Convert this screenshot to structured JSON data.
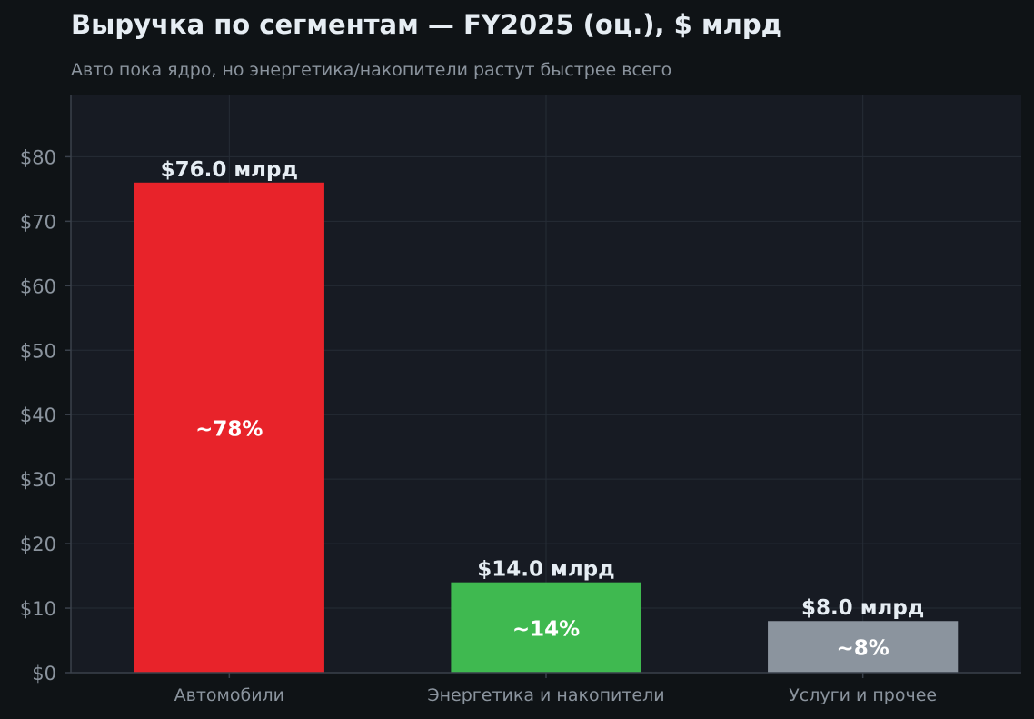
{
  "chart_data": {
    "type": "bar",
    "title": "Выручка по сегментам — FY2025 (оц.), $ млрд",
    "subtitle": "Авто пока ядро, но энергетика/накопители растут быстрее всего",
    "categories": [
      "Автомобили",
      "Энергетика и накопители",
      "Услуги и прочее"
    ],
    "values": [
      76.0,
      14.0,
      8.0
    ],
    "value_labels": [
      "$76.0 млрд",
      "$14.0 млрд",
      "$8.0 млрд"
    ],
    "share_labels": [
      "~78%",
      "~14%",
      "~8%"
    ],
    "colors": [
      "#e8232a",
      "#3fb950",
      "#8b949e"
    ],
    "yticks": [
      0,
      10,
      20,
      30,
      40,
      50,
      60,
      70,
      80
    ],
    "ytick_labels": [
      "$0",
      "$10",
      "$20",
      "$30",
      "$40",
      "$50",
      "$60",
      "$70",
      "$80"
    ],
    "ylim": [
      0,
      89.5
    ],
    "grid": true,
    "xlabel": "",
    "ylabel": ""
  },
  "theme": {
    "page_bg": "#0f1316",
    "plot_bg": "#171b23",
    "grid_color": "#262c36",
    "axis_color": "#3a414b"
  }
}
